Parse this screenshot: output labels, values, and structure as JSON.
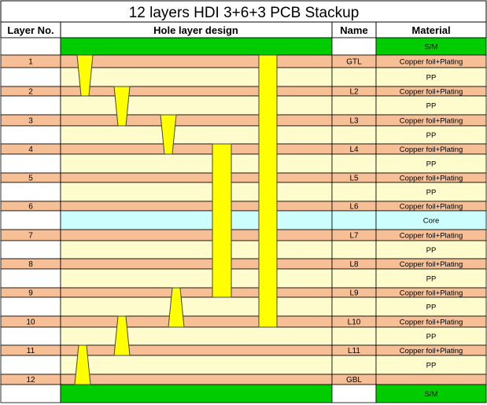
{
  "title": "12 layers HDI 3+6+3 PCB Stackup",
  "headers": {
    "layer_no": "Layer No.",
    "hole_design": "Hole layer design",
    "name": "Name",
    "material": "Material"
  },
  "colors": {
    "solder_mask": "#00cc00",
    "copper": "#f7bf95",
    "prepreg": "#fefccd",
    "core": "#cdfefe",
    "via": "#ffff00",
    "grid": "#000000"
  },
  "rows": [
    {
      "kind": "mask",
      "layer": "",
      "name": "",
      "material": "S/M"
    },
    {
      "kind": "copper",
      "layer": "1",
      "name": "GTL",
      "material": "Copper foil+Plating"
    },
    {
      "kind": "pp",
      "layer": "",
      "name": "",
      "material": "PP"
    },
    {
      "kind": "copper",
      "layer": "2",
      "name": "L2",
      "material": "Copper foil+Plating"
    },
    {
      "kind": "pp",
      "layer": "",
      "name": "",
      "material": "PP"
    },
    {
      "kind": "copper",
      "layer": "3",
      "name": "L3",
      "material": "Copper foil+Plating"
    },
    {
      "kind": "pp",
      "layer": "",
      "name": "",
      "material": "PP"
    },
    {
      "kind": "copper",
      "layer": "4",
      "name": "L4",
      "material": "Copper foil+Plating"
    },
    {
      "kind": "pp",
      "layer": "",
      "name": "",
      "material": "PP"
    },
    {
      "kind": "copper",
      "layer": "5",
      "name": "L5",
      "material": "Copper foil+Plating"
    },
    {
      "kind": "pp",
      "layer": "",
      "name": "",
      "material": "PP"
    },
    {
      "kind": "copper",
      "layer": "6",
      "name": "L6",
      "material": "Copper foil+Plating"
    },
    {
      "kind": "core",
      "layer": "",
      "name": "",
      "material": "Core"
    },
    {
      "kind": "copper",
      "layer": "7",
      "name": "L7",
      "material": "Copper foil+Plating"
    },
    {
      "kind": "pp",
      "layer": "",
      "name": "",
      "material": "PP"
    },
    {
      "kind": "copper",
      "layer": "8",
      "name": "L8",
      "material": "Copper foil+Plating"
    },
    {
      "kind": "pp",
      "layer": "",
      "name": "",
      "material": "PP"
    },
    {
      "kind": "copper",
      "layer": "9",
      "name": "L9",
      "material": "Copper foil+Plating"
    },
    {
      "kind": "pp",
      "layer": "",
      "name": "",
      "material": "PP"
    },
    {
      "kind": "copper",
      "layer": "10",
      "name": "L10",
      "material": "Copper foil+Plating"
    },
    {
      "kind": "pp",
      "layer": "",
      "name": "",
      "material": "PP"
    },
    {
      "kind": "copper",
      "layer": "11",
      "name": "L11",
      "material": "Copper foil+Plating"
    },
    {
      "kind": "pp",
      "layer": "",
      "name": "",
      "material": "PP"
    },
    {
      "kind": "copper",
      "layer": "12",
      "name": "GBL",
      "material": ""
    },
    {
      "kind": "mask",
      "layer": "",
      "name": "",
      "material": "S/M"
    }
  ],
  "microvias": [
    {
      "from_layer": "1",
      "to_layer": "2"
    },
    {
      "from_layer": "2",
      "to_layer": "3"
    },
    {
      "from_layer": "3",
      "to_layer": "4"
    },
    {
      "from_layer": "9",
      "to_layer": "10"
    },
    {
      "from_layer": "10",
      "to_layer": "11"
    },
    {
      "from_layer": "11",
      "to_layer": "12"
    }
  ],
  "buried_vias": [
    {
      "from_layer": "4",
      "to_layer": "9"
    },
    {
      "from_layer": "1",
      "to_layer": "10"
    }
  ]
}
